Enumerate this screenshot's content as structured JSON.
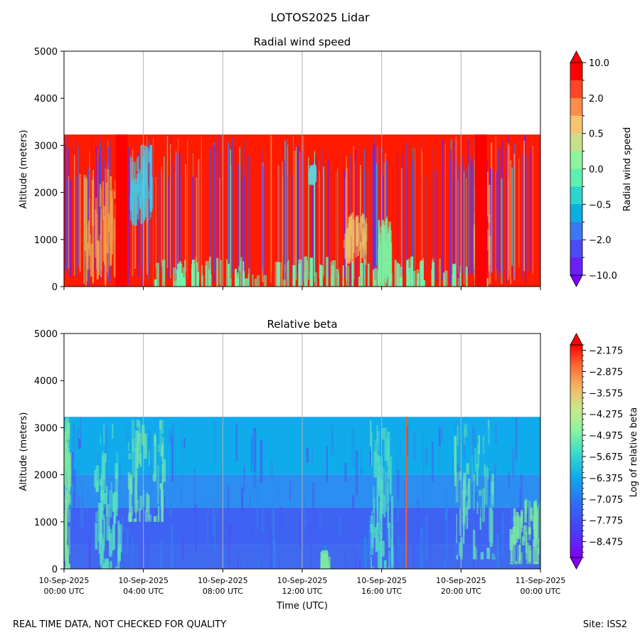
{
  "figure": {
    "suptitle": "LOTOS2025 Lidar",
    "footer_left": "REAL TIME DATA, NOT CHECKED FOR QUALITY",
    "footer_right": "Site: ISS2"
  },
  "chart_data": [
    {
      "type": "heatmap",
      "title": "Radial wind speed",
      "ylabel": "Altitude (meters)",
      "xlabel": "",
      "x_tick_labels": [
        [
          "10-Sep-2025",
          "00:00 UTC"
        ],
        [
          "10-Sep-2025",
          "04:00 UTC"
        ],
        [
          "10-Sep-2025",
          "08:00 UTC"
        ],
        [
          "10-Sep-2025",
          "12:00 UTC"
        ],
        [
          "10-Sep-2025",
          "16:00 UTC"
        ],
        [
          "10-Sep-2025",
          "20:00 UTC"
        ],
        [
          "11-Sep-2025",
          "00:00 UTC"
        ]
      ],
      "x_tick_labels_shown": false,
      "x_range_hours": [
        0,
        24
      ],
      "ylim": [
        0,
        5000
      ],
      "yticks": [
        0,
        1000,
        2000,
        3000,
        4000,
        5000
      ],
      "data_top_altitude": 3230,
      "grid": "vertical at x ticks",
      "colorbar": {
        "label": "Radial wind speed",
        "tick_labels": [
          "10.0",
          "2.0",
          "0.5",
          "0.0",
          "−0.5",
          "−2.0",
          "−10.0"
        ],
        "levels": [
          10.0,
          5.0,
          2.0,
          1.0,
          0.5,
          0.2,
          0.0,
          -0.2,
          -0.5,
          -1.0,
          -2.0,
          -5.0,
          -10.0
        ],
        "colors": [
          "#ff0000",
          "#ff4525",
          "#ff8c4a",
          "#f7c56f",
          "#c8e088",
          "#8cf59c",
          "#5ef0b0",
          "#2bd4cc",
          "#0aaedf",
          "#3b79f2",
          "#4a4bf4",
          "#6a1ff7"
        ],
        "extend": "both",
        "over_color": "#ff0000",
        "under_color": "#8000ff"
      },
      "background_color": "#ff1a00",
      "features": [
        {
          "kind": "speckle",
          "description_values": "mixed high/low"
        },
        {
          "kind": "low_wind_layer",
          "x_hours": [
            4.5,
            21.5
          ],
          "alt": [
            0,
            650
          ],
          "color": "#6ff5b0"
        },
        {
          "kind": "light_streak",
          "x_hours": [
            3.3,
            4.4
          ],
          "alt": [
            1400,
            3100
          ],
          "color": "#42c8e6"
        },
        {
          "kind": "light_streak",
          "x_hours": [
            1.0,
            2.6
          ],
          "alt": [
            200,
            2500
          ],
          "color": "#f2a04a"
        },
        {
          "kind": "light_streak",
          "x_hours": [
            14.0,
            15.2
          ],
          "alt": [
            600,
            1600
          ],
          "color": "#e7c26a"
        },
        {
          "kind": "light_streak",
          "x_hours": [
            15.8,
            16.4
          ],
          "alt": [
            100,
            1500
          ],
          "color": "#7df0a0"
        },
        {
          "kind": "light_streak",
          "x_hours": [
            12.3,
            12.6
          ],
          "alt": [
            2300,
            2600
          ],
          "color": "#5fd3d8"
        },
        {
          "kind": "light_streak",
          "x_hours": [
            20.6,
            21.4
          ],
          "alt": [
            200,
            2700
          ],
          "color": "#f4b05a"
        },
        {
          "kind": "solid_red_band",
          "x_hours": [
            2.6,
            3.2
          ],
          "alt": [
            0,
            3230
          ]
        },
        {
          "kind": "solid_red_band",
          "x_hours": [
            20.7,
            21.3
          ],
          "alt": [
            0,
            3230
          ]
        }
      ]
    },
    {
      "type": "heatmap",
      "title": "Relative beta",
      "ylabel": "Altitude (meters)",
      "xlabel": "Time (UTC)",
      "x_tick_labels": [
        [
          "10-Sep-2025",
          "00:00 UTC"
        ],
        [
          "10-Sep-2025",
          "04:00 UTC"
        ],
        [
          "10-Sep-2025",
          "08:00 UTC"
        ],
        [
          "10-Sep-2025",
          "12:00 UTC"
        ],
        [
          "10-Sep-2025",
          "16:00 UTC"
        ],
        [
          "10-Sep-2025",
          "20:00 UTC"
        ],
        [
          "11-Sep-2025",
          "00:00 UTC"
        ]
      ],
      "x_tick_labels_shown": true,
      "x_range_hours": [
        0,
        24
      ],
      "ylim": [
        0,
        5000
      ],
      "yticks": [
        0,
        1000,
        2000,
        3000,
        4000,
        5000
      ],
      "data_top_altitude": 3230,
      "grid": "vertical at x ticks",
      "colorbar": {
        "label": "Log of relative beta",
        "tick_labels": [
          "−2.175",
          "−2.875",
          "−3.575",
          "−4.275",
          "−4.975",
          "−5.675",
          "−6.375",
          "−7.075",
          "−7.775",
          "−8.475"
        ],
        "range": [
          -9.0,
          -2.0
        ],
        "extend": "both",
        "over_color": "#ff0000",
        "under_color": "#8000ff"
      },
      "layers": [
        {
          "alt": [
            0,
            500
          ],
          "color": "#3f6af0"
        },
        {
          "alt": [
            500,
            1300
          ],
          "color": "#3e63f3"
        },
        {
          "alt": [
            1300,
            2000
          ],
          "color": "#2c8ef0"
        },
        {
          "alt": [
            2000,
            3230
          ],
          "color": "#10abea"
        }
      ],
      "features": [
        {
          "kind": "plume",
          "x_hours": [
            0.0,
            0.2
          ],
          "alt": [
            0,
            3230
          ],
          "color": "#7be8a0"
        },
        {
          "kind": "plume",
          "x_hours": [
            1.5,
            2.8
          ],
          "alt": [
            0,
            3100
          ],
          "color": "#55e0c0"
        },
        {
          "kind": "plume",
          "x_hours": [
            3.2,
            5.0
          ],
          "alt": [
            1000,
            3200
          ],
          "color": "#6ee3b0"
        },
        {
          "kind": "plume",
          "x_hours": [
            15.4,
            16.5
          ],
          "alt": [
            0,
            3200
          ],
          "color": "#4fd9c8"
        },
        {
          "kind": "plume",
          "x_hours": [
            19.6,
            21.7
          ],
          "alt": [
            200,
            3200
          ],
          "color": "#62e0b8"
        },
        {
          "kind": "plume",
          "x_hours": [
            22.4,
            24.0
          ],
          "alt": [
            100,
            1500
          ],
          "color": "#78e8a0"
        },
        {
          "kind": "plume",
          "x_hours": [
            12.9,
            13.3
          ],
          "alt": [
            0,
            400
          ],
          "color": "#7be8a0"
        },
        {
          "kind": "thin_line",
          "x_hours": [
            17.2,
            17.25
          ],
          "alt": [
            0,
            3230
          ],
          "color": "#ff5a1e"
        }
      ]
    }
  ]
}
